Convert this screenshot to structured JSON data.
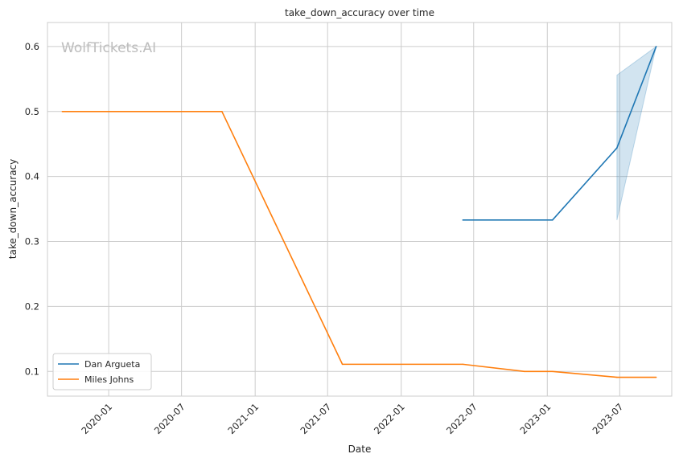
{
  "watermark": "WolfTickets.AI",
  "chart_data": {
    "type": "line",
    "title": "take_down_accuracy over time",
    "xlabel": "Date",
    "ylabel": "take_down_accuracy",
    "x_axis_type": "date",
    "xlim": [
      "2019-08-01",
      "2023-11-08"
    ],
    "ylim": [
      0.062,
      0.637
    ],
    "x_ticks": [
      "2020-01-01",
      "2020-07-01",
      "2021-01-01",
      "2021-07-01",
      "2022-01-01",
      "2022-07-01",
      "2023-01-01",
      "2023-07-01"
    ],
    "x_tick_labels": [
      "2020-01",
      "2020-07",
      "2021-01",
      "2021-07",
      "2022-01",
      "2022-07",
      "2023-01",
      "2023-07"
    ],
    "y_ticks": [
      0.1,
      0.2,
      0.3,
      0.4,
      0.5,
      0.6
    ],
    "y_tick_labels": [
      "0.1",
      "0.2",
      "0.3",
      "0.4",
      "0.5",
      "0.6"
    ],
    "grid": true,
    "legend_position": "lower-left",
    "series": [
      {
        "name": "Dan Argueta",
        "color": "#1f77b4",
        "points": [
          {
            "x": "2022-06-04",
            "y": 0.333
          },
          {
            "x": "2023-01-14",
            "y": 0.333
          },
          {
            "x": "2023-06-24",
            "y": 0.444
          },
          {
            "x": "2023-09-30",
            "y": 0.6
          }
        ],
        "band": [
          {
            "x": "2023-06-24",
            "low": 0.333,
            "high": 0.556
          },
          {
            "x": "2023-09-30",
            "low": 0.6,
            "high": 0.6
          }
        ]
      },
      {
        "name": "Miles Johns",
        "color": "#ff7f0e",
        "points": [
          {
            "x": "2019-09-07",
            "y": 0.5
          },
          {
            "x": "2020-10-10",
            "y": 0.5
          },
          {
            "x": "2021-08-07",
            "y": 0.111
          },
          {
            "x": "2022-06-04",
            "y": 0.111
          },
          {
            "x": "2022-11-05",
            "y": 0.1
          },
          {
            "x": "2023-01-14",
            "y": 0.1
          },
          {
            "x": "2023-06-24",
            "y": 0.091
          },
          {
            "x": "2023-09-30",
            "y": 0.091
          }
        ]
      }
    ]
  }
}
